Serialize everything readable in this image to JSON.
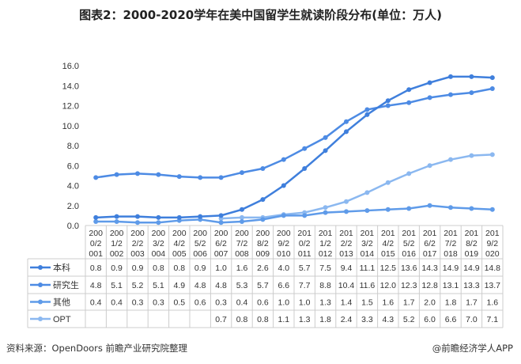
{
  "title": "图表2：2000-2020学年在美中国留学生就读阶段分布(单位：万人)",
  "source": "资料来源：OpenDoors 前瞻产业研究院整理",
  "brand": "@前瞻经济学人APP",
  "chart_data": {
    "type": "line",
    "title": "图表2：2000-2020学年在美中国留学生就读阶段分布(单位：万人)",
    "categories": [
      "2000/2001",
      "2001/2002",
      "2002/2003",
      "2003/2004",
      "2004/2005",
      "2005/2006",
      "2006/2007",
      "2007/2008",
      "2008/2009",
      "2009/2010",
      "2010/2011",
      "2011/2012",
      "2012/2013",
      "2013/2014",
      "2014/2015",
      "2015/2016",
      "2016/2017",
      "2017/2018",
      "2018/2019",
      "2019/2020"
    ],
    "ylim": [
      0,
      16
    ],
    "yticks": [
      "0.0",
      "2.0",
      "4.0",
      "6.0",
      "8.0",
      "10.0",
      "12.0",
      "14.0",
      "16.0"
    ],
    "grid": false,
    "legend": "data-table",
    "series": [
      {
        "name": "本科",
        "color": "#3f7fdc",
        "values": [
          0.8,
          0.9,
          0.9,
          0.8,
          0.8,
          0.9,
          1.0,
          1.6,
          2.6,
          4.0,
          5.7,
          7.5,
          9.4,
          11.1,
          12.5,
          13.6,
          14.3,
          14.9,
          14.9,
          14.8
        ]
      },
      {
        "name": "研究生",
        "color": "#4d8be4",
        "values": [
          4.8,
          5.1,
          5.2,
          5.1,
          4.9,
          4.8,
          4.8,
          5.3,
          5.7,
          6.6,
          7.7,
          8.8,
          10.4,
          11.6,
          12.0,
          12.3,
          12.8,
          13.1,
          13.3,
          13.7
        ]
      },
      {
        "name": "其他",
        "color": "#5f9be9",
        "values": [
          0.4,
          0.4,
          0.3,
          0.3,
          0.5,
          0.6,
          0.3,
          0.4,
          0.6,
          1.0,
          1.0,
          1.3,
          1.4,
          1.5,
          1.6,
          1.7,
          2.0,
          1.8,
          1.7,
          1.6
        ]
      },
      {
        "name": "OPT",
        "color": "#8bb8f0",
        "values": [
          null,
          null,
          null,
          null,
          null,
          null,
          0.7,
          0.8,
          0.8,
          1.1,
          1.3,
          1.8,
          2.4,
          3.3,
          4.3,
          5.2,
          6.0,
          6.6,
          7.0,
          7.1
        ]
      }
    ]
  }
}
